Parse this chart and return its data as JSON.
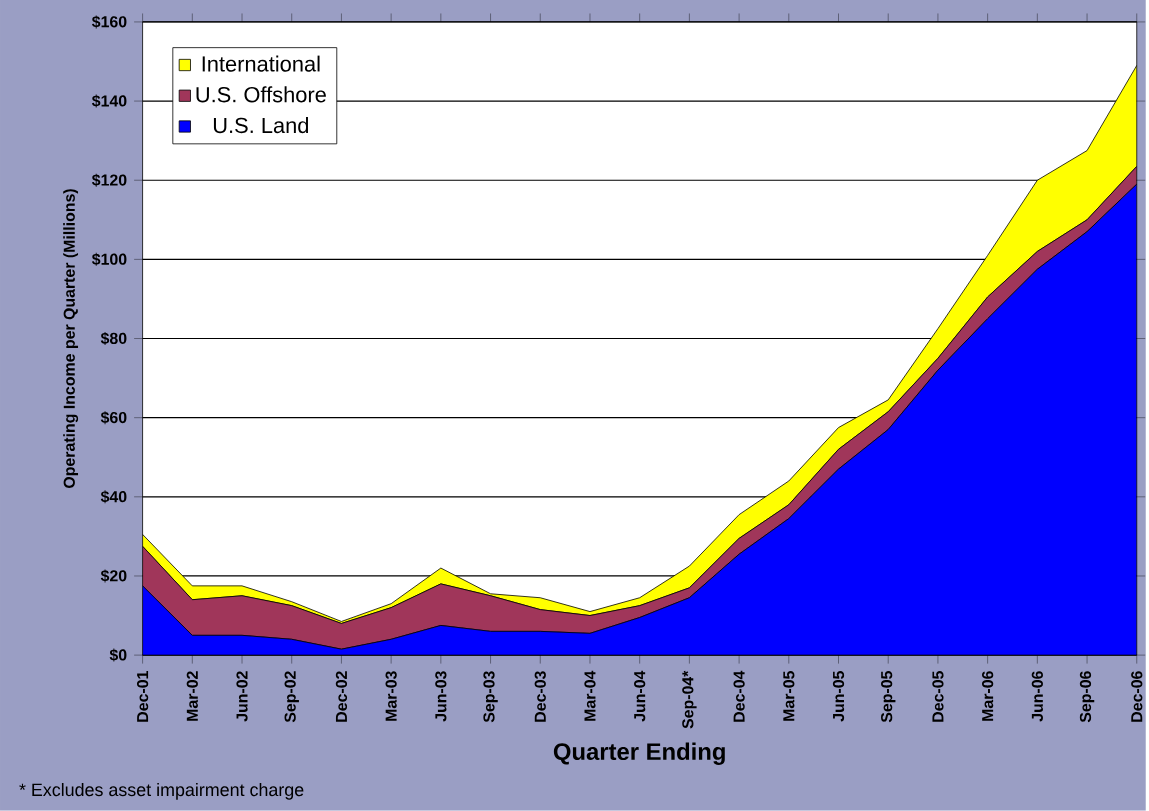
{
  "chart_data": {
    "type": "area",
    "stacked": true,
    "xlabel": "Quarter Ending",
    "ylabel": "Operating Income per Quarter (Millions)",
    "categories": [
      "Dec-01",
      "Mar-02",
      "Jun-02",
      "Sep-02",
      "Dec-02",
      "Mar-03",
      "Jun-03",
      "Sep-03",
      "Dec-03",
      "Mar-04",
      "Jun-04",
      "Sep-04*",
      "Dec-04",
      "Mar-05",
      "Jun-05",
      "Sep-05",
      "Dec-05",
      "Mar-06",
      "Jun-06",
      "Sep-06",
      "Dec-06"
    ],
    "series": [
      {
        "name": "U.S. Land",
        "color": "#0000ff",
        "values": [
          17.5,
          5,
          5,
          4,
          1.5,
          4,
          7.5,
          6,
          6,
          5.5,
          9.5,
          14.5,
          25.5,
          34.5,
          47,
          57,
          72,
          85,
          97.5,
          107,
          119
        ]
      },
      {
        "name": "U.S. Offshore",
        "color": "#a0365a",
        "values": [
          10,
          9,
          10,
          8.5,
          6.5,
          8,
          10.5,
          9,
          5.5,
          4.5,
          3,
          2.5,
          4,
          3.5,
          5,
          4.5,
          3,
          5.5,
          4.5,
          3,
          4.5
        ]
      },
      {
        "name": "International",
        "color": "#ffff00",
        "values": [
          3,
          3.5,
          2.5,
          1,
          0.5,
          1,
          4,
          0.5,
          3,
          1,
          2,
          5.5,
          6,
          6,
          5.5,
          3,
          7.5,
          10.5,
          18,
          17.5,
          25.5
        ]
      }
    ],
    "ylim": [
      0,
      160
    ],
    "yticks": [
      {
        "value": 0,
        "label": "$0"
      },
      {
        "value": 20,
        "label": "$20"
      },
      {
        "value": 40,
        "label": "$40"
      },
      {
        "value": 60,
        "label": "$60"
      },
      {
        "value": 80,
        "label": "$80"
      },
      {
        "value": 100,
        "label": "$100"
      },
      {
        "value": 120,
        "label": "$120"
      },
      {
        "value": 140,
        "label": "$140"
      },
      {
        "value": 160,
        "label": "$160"
      }
    ],
    "grid": "y",
    "legend": "top left",
    "annotations": [
      "* Excludes asset impairment charge"
    ]
  }
}
